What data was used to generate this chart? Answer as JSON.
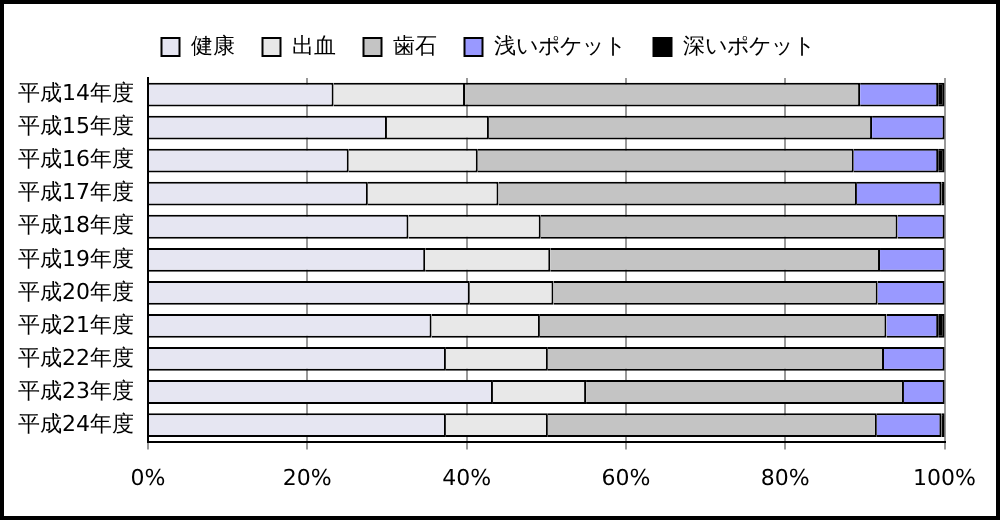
{
  "chart_data": {
    "type": "bar",
    "orientation": "horizontal",
    "stacked": true,
    "categories": [
      "平成14年度",
      "平成15年度",
      "平成16年度",
      "平成17年度",
      "平成18年度",
      "平成19年度",
      "平成20年度",
      "平成21年度",
      "平成22年度",
      "平成23年度",
      "平成24年度"
    ],
    "series": [
      {
        "name": "健康",
        "color": "#e6e6f2",
        "values": [
          23.3,
          30.0,
          25.2,
          27.6,
          32.7,
          34.8,
          40.4,
          35.6,
          37.4,
          43.3,
          37.4
        ]
      },
      {
        "name": "出血",
        "color": "#e8e8e8",
        "values": [
          16.5,
          12.8,
          16.2,
          16.4,
          16.6,
          15.7,
          10.5,
          13.6,
          12.8,
          11.7,
          12.8
        ]
      },
      {
        "name": "歯石",
        "color": "#c4c4c4",
        "values": [
          49.6,
          48.1,
          47.2,
          45.0,
          44.8,
          41.4,
          40.7,
          43.5,
          42.2,
          39.9,
          41.3
        ]
      },
      {
        "name": "浅いポケット",
        "color": "#9999ff",
        "values": [
          9.8,
          9.1,
          10.6,
          10.6,
          5.9,
          8.1,
          8.4,
          6.5,
          7.6,
          5.1,
          8.1
        ]
      },
      {
        "name": "深いポケット",
        "color": "#000000",
        "values": [
          0.8,
          0,
          0.8,
          0.4,
          0,
          0,
          0,
          0.8,
          0,
          0,
          0.4
        ]
      }
    ],
    "xlim": [
      0,
      100
    ],
    "xticks": [
      {
        "value": 0,
        "label": "0%"
      },
      {
        "value": 20,
        "label": "20%"
      },
      {
        "value": 40,
        "label": "40%"
      },
      {
        "value": 60,
        "label": "60%"
      },
      {
        "value": 80,
        "label": "80%"
      },
      {
        "value": 100,
        "label": "100%"
      }
    ],
    "grid": "x",
    "legend": "top"
  }
}
